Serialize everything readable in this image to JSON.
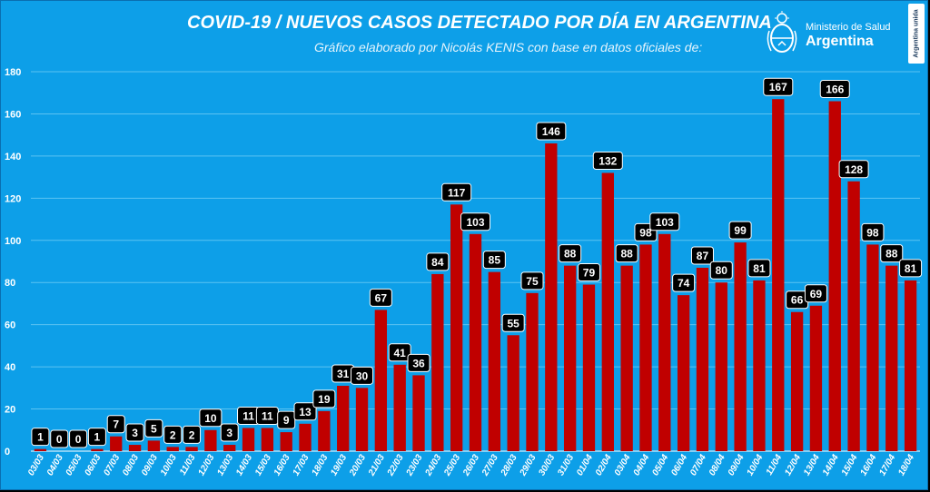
{
  "header": {
    "title": "COVID-19  /  NUEVOS CASOS DETECTADO POR DÍA EN ARGENTINA",
    "subtitle": "Gráfico elaborado por Nicolás KENIS con base en datos oficiales de:"
  },
  "logo": {
    "ministry": "Ministerio de Salud",
    "country": "Argentina",
    "badge": "Argentina unida"
  },
  "colors": {
    "background": "#0d9fe8",
    "bar": "#c00000",
    "label_box": "#000000",
    "grid": "#5cc3f2"
  },
  "chart_data": {
    "type": "bar",
    "title": "COVID-19  /  NUEVOS CASOS DETECTADO POR DÍA EN ARGENTINA",
    "xlabel": "",
    "ylabel": "",
    "ylim": [
      0,
      180
    ],
    "yticks": [
      0,
      20,
      40,
      60,
      80,
      100,
      120,
      140,
      160,
      180
    ],
    "grid": true,
    "categories": [
      "03/03",
      "04/03",
      "05/03",
      "06/03",
      "07/03",
      "08/03",
      "09/03",
      "10/03",
      "11/03",
      "12/03",
      "13/03",
      "14/03",
      "15/03",
      "16/03",
      "17/03",
      "18/03",
      "19/03",
      "20/03",
      "21/03",
      "22/03",
      "23/03",
      "24/03",
      "25/03",
      "26/03",
      "27/03",
      "28/03",
      "29/03",
      "30/03",
      "31/03",
      "01/04",
      "02/04",
      "03/04",
      "04/04",
      "05/04",
      "06/04",
      "07/04",
      "08/04",
      "09/04",
      "10/04",
      "11/04",
      "12/04",
      "13/04",
      "14/04",
      "15/04",
      "16/04",
      "17/04",
      "18/04"
    ],
    "values": [
      1,
      0,
      0,
      1,
      7,
      3,
      5,
      2,
      2,
      10,
      3,
      11,
      11,
      9,
      13,
      19,
      31,
      30,
      67,
      41,
      36,
      84,
      117,
      103,
      85,
      55,
      75,
      146,
      88,
      79,
      132,
      88,
      98,
      103,
      74,
      87,
      80,
      99,
      81,
      167,
      66,
      69,
      166,
      128,
      98,
      88,
      81
    ]
  }
}
